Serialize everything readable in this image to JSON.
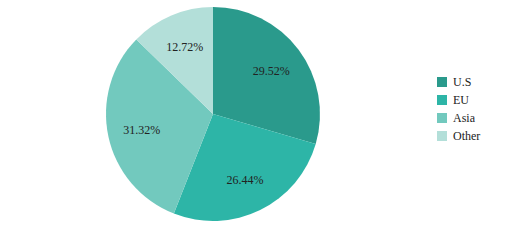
{
  "chart_data": {
    "type": "pie",
    "categories": [
      "U.S",
      "EU",
      "Asia",
      "Other"
    ],
    "values": [
      29.52,
      26.44,
      31.32,
      12.72
    ],
    "value_labels": [
      "29.52%",
      "26.44%",
      "31.32%",
      "12.72%"
    ],
    "colors": [
      "#2a9a8c",
      "#2db5a7",
      "#72c9be",
      "#b3dfd9"
    ],
    "data_labels": true,
    "legend": "right"
  }
}
